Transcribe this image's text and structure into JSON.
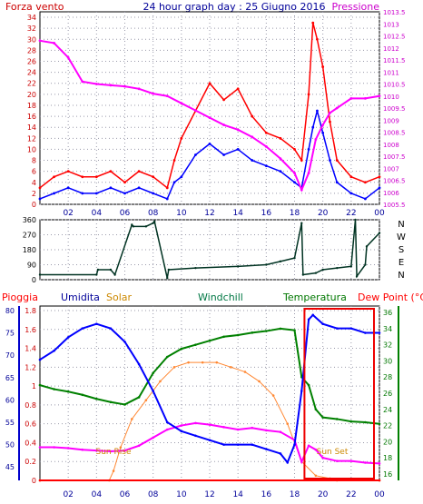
{
  "chart_data": [
    {
      "type": "line",
      "title": "24 hour graph day : 25 Giugno 2016",
      "left_label": "Forza vento",
      "right_label": "Pressione",
      "x_ticks": [
        "02",
        "04",
        "06",
        "08",
        "10",
        "12",
        "14",
        "16",
        "18",
        "20",
        "22",
        "00"
      ],
      "y_left_ticks": [
        0,
        2,
        4,
        6,
        8,
        10,
        12,
        14,
        16,
        18,
        20,
        22,
        24,
        26,
        28,
        30,
        32,
        34
      ],
      "y_left_range": [
        0,
        35
      ],
      "y_right_ticks": [
        "1005.5",
        "1006",
        "1006.5",
        "1007",
        "1007.5",
        "1008",
        "1008.5",
        "1009",
        "1009.5",
        "1010",
        "1010.5",
        "1011",
        "1011.5",
        "1012",
        "1012.5",
        "1013",
        "1013.5"
      ],
      "y_right_range": [
        1005.5,
        1013.5
      ],
      "grid": true,
      "colors": {
        "wind_gust": "#ff0000",
        "wind_avg": "#0000ff",
        "pressure": "#ff00ff"
      },
      "series": [
        {
          "role": "wind_gust",
          "x": [
            0,
            1,
            2,
            3,
            4,
            5,
            6,
            7,
            8,
            9,
            9.5,
            10,
            11,
            12,
            13,
            14,
            15,
            16,
            17,
            18,
            18.5,
            19,
            19.3,
            19.6,
            20,
            20.5,
            21,
            22,
            23,
            24
          ],
          "y": [
            3,
            5,
            6,
            5,
            5,
            6,
            4,
            6,
            5,
            3,
            8,
            12,
            17,
            22,
            19,
            21,
            16,
            13,
            12,
            10,
            8,
            20,
            33,
            30,
            25,
            15,
            8,
            5,
            4,
            5
          ]
        },
        {
          "role": "wind_avg",
          "x": [
            0,
            1,
            2,
            3,
            4,
            5,
            6,
            7,
            8,
            9,
            9.5,
            10,
            11,
            12,
            13,
            14,
            15,
            16,
            17,
            18,
            18.5,
            19,
            19.3,
            19.6,
            20,
            20.5,
            21,
            22,
            23,
            24
          ],
          "y": [
            1,
            2,
            3,
            2,
            2,
            3,
            2,
            3,
            2,
            1,
            4,
            5,
            9,
            11,
            9,
            10,
            8,
            7,
            6,
            4,
            3,
            10,
            14,
            17,
            13,
            8,
            4,
            2,
            1,
            3
          ]
        },
        {
          "role": "pressure",
          "x": [
            0,
            1,
            2,
            3,
            4,
            5,
            6,
            7,
            8,
            9,
            10,
            11,
            12,
            13,
            14,
            15,
            16,
            17,
            18,
            18.5,
            19,
            19.5,
            20,
            20.5,
            21,
            22,
            23,
            24
          ],
          "y": [
            1012.3,
            1012.2,
            1011.6,
            1010.6,
            1010.5,
            1010.45,
            1010.4,
            1010.3,
            1010.1,
            1010.0,
            1009.7,
            1009.4,
            1009.1,
            1008.8,
            1008.6,
            1008.3,
            1007.9,
            1007.4,
            1006.8,
            1006.1,
            1006.8,
            1008.2,
            1008.8,
            1009.3,
            1009.5,
            1009.9,
            1009.9,
            1010.0
          ]
        }
      ]
    },
    {
      "type": "line",
      "series_label": "wind direction",
      "y_ticks": [
        0,
        90,
        180,
        270,
        360
      ],
      "y_range": [
        0,
        360
      ],
      "compass_labels": [
        "N",
        "W",
        "S",
        "E",
        "N"
      ],
      "x_ticks": [],
      "color": "#003322",
      "series": [
        {
          "x": [
            0,
            4,
            4.1,
            5,
            5.3,
            6.5,
            6.6,
            7.5,
            8,
            8.1,
            9,
            9.1,
            11,
            14,
            16,
            17,
            18,
            18.5,
            18.6,
            19.5,
            20,
            21,
            22,
            22.3,
            22.4,
            23,
            23.1,
            24
          ],
          "y": [
            30,
            30,
            60,
            60,
            30,
            330,
            320,
            320,
            340,
            350,
            10,
            60,
            70,
            80,
            90,
            110,
            130,
            340,
            30,
            40,
            60,
            70,
            80,
            360,
            20,
            90,
            200,
            280
          ]
        }
      ]
    },
    {
      "type": "line",
      "legend": [
        "Pioggia",
        "Umidita",
        "Solar",
        "Windchill",
        "Temperatura",
        "Dew Point (°C)"
      ],
      "legend_colors": [
        "#ff0000",
        "#000099",
        "#cc8800",
        "#007744",
        "#007700",
        "#ff0000"
      ],
      "x_ticks": [
        "02",
        "04",
        "06",
        "08",
        "10",
        "12",
        "14",
        "16",
        "18",
        "20",
        "22",
        "00"
      ],
      "y_rain_ticks": [
        "0",
        "0.2",
        "0.4",
        "0.6",
        "0.8",
        "1",
        "1.2",
        "1.4",
        "1.6",
        "1.8"
      ],
      "y_hum_ticks": [
        "45",
        "50",
        "55",
        "60",
        "65",
        "70",
        "75",
        "80"
      ],
      "y_temp_ticks": [
        "16",
        "18",
        "20",
        "22",
        "24",
        "26",
        "28",
        "30",
        "32",
        "34",
        "36"
      ],
      "annotations": [
        "Sun Rise",
        "Sun Set"
      ],
      "colors": {
        "humidity": "#0000ff",
        "temperature": "#008000",
        "dew_point": "#ff00ff",
        "solar": "#ff8833",
        "rain": "#ff0000"
      },
      "series": [
        {
          "role": "humidity",
          "x": [
            0,
            1,
            2,
            3,
            4,
            5,
            6,
            7,
            8,
            9,
            10,
            11,
            12,
            13,
            14,
            15,
            16,
            17,
            17.5,
            18,
            18.5,
            19,
            19.3,
            20,
            21,
            22,
            23,
            24
          ],
          "y": [
            69,
            71,
            74,
            76,
            77,
            76,
            73,
            68,
            62,
            55,
            53,
            52,
            51,
            50,
            50,
            50,
            49,
            48,
            46,
            50,
            62,
            78,
            79,
            77,
            76,
            76,
            75,
            75
          ]
        },
        {
          "role": "temperature",
          "x": [
            0,
            1,
            2,
            3,
            4,
            5,
            6,
            7,
            8,
            9,
            10,
            11,
            12,
            13,
            14,
            15,
            16,
            17,
            18,
            18.5,
            19,
            19.5,
            20,
            21,
            22,
            23,
            24
          ],
          "y": [
            27,
            26.5,
            26.2,
            25.8,
            25.3,
            24.9,
            24.6,
            25.5,
            28.5,
            30.5,
            31.5,
            32,
            32.5,
            33,
            33.2,
            33.5,
            33.7,
            34,
            33.8,
            28,
            27,
            24,
            23,
            22.8,
            22.5,
            22.4,
            22.2
          ]
        },
        {
          "role": "dew_point",
          "x": [
            0,
            1,
            2,
            3,
            4,
            5,
            6,
            7,
            8,
            9,
            10,
            11,
            12,
            13,
            14,
            15,
            16,
            17,
            18,
            18.5,
            19,
            19.5,
            20,
            21,
            22,
            23,
            24
          ],
          "y": [
            19.3,
            19.3,
            19.2,
            19.0,
            18.9,
            18.8,
            18.9,
            19.5,
            20.5,
            21.5,
            22,
            22.3,
            22.1,
            21.8,
            21.5,
            21.7,
            21.4,
            21.2,
            20.2,
            17.5,
            19.5,
            19,
            18,
            17.6,
            17.6,
            17.4,
            17.3
          ]
        },
        {
          "role": "solar",
          "x": [
            0,
            4.9,
            5.2,
            5.7,
            6.5,
            7.5,
            8.5,
            9.5,
            10.5,
            11.5,
            12.5,
            13.5,
            14.5,
            15.5,
            16.5,
            17.5,
            18.5,
            19.5,
            20.5,
            21,
            24
          ],
          "y": [
            0,
            0,
            0.1,
            0.35,
            0.65,
            0.85,
            1.05,
            1.2,
            1.25,
            1.25,
            1.25,
            1.2,
            1.15,
            1.05,
            0.9,
            0.6,
            0.2,
            0.05,
            0.02,
            0,
            0
          ]
        },
        {
          "role": "rain",
          "x": [
            0,
            24
          ],
          "y": [
            0,
            0
          ]
        }
      ]
    }
  ]
}
